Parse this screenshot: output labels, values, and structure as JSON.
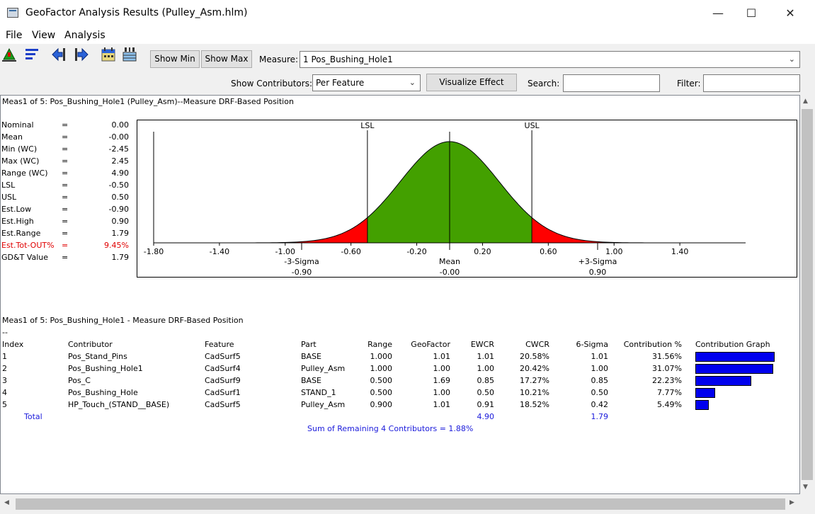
{
  "window": {
    "title": "GeoFactor Analysis Results (Pulley_Asm.hlm)",
    "minimize": "—",
    "maximize": "☐",
    "close": "✕"
  },
  "menu": [
    "File",
    "View",
    "Analysis"
  ],
  "toolbar": {
    "show_min": "Show Min",
    "show_max": "Show Max",
    "measure_label": "Measure:",
    "measure_value": "1 Pos_Bushing_Hole1",
    "contributors_label": "Show Contributors:",
    "contributors_value": "Per Feature",
    "visualize": "Visualize Effect",
    "search_label": "Search:",
    "filter_label": "Filter:",
    "icons": [
      "tree-up-icon",
      "sort-list-icon",
      "arrow-left-icon",
      "arrow-right-icon",
      "calendar-icon",
      "table-index-icon"
    ]
  },
  "header1": "Meas1 of 5: Pos_Bushing_Hole1 (Pulley_Asm)--Measure DRF-Based Position",
  "stats": [
    {
      "name": "Nominal",
      "eq": "=",
      "value": "0.00"
    },
    {
      "name": "Mean",
      "eq": "=",
      "value": "-0.00"
    },
    {
      "name": "Min (WC)",
      "eq": "=",
      "value": "-2.45"
    },
    {
      "name": "Max (WC)",
      "eq": "=",
      "value": "2.45"
    },
    {
      "name": "Range (WC)",
      "eq": "=",
      "value": "4.90"
    },
    {
      "name": "LSL",
      "eq": "=",
      "value": "-0.50"
    },
    {
      "name": "USL",
      "eq": "=",
      "value": "0.50"
    },
    {
      "name": "Est.Low",
      "eq": "=",
      "value": "-0.90"
    },
    {
      "name": "Est.High",
      "eq": "=",
      "value": "0.90"
    },
    {
      "name": "Est.Range",
      "eq": "=",
      "value": "1.79"
    },
    {
      "name": "Est.Tot-OUT%",
      "eq": "=",
      "value": "9.45%",
      "highlight": true
    },
    {
      "name": "GD&T Value",
      "eq": "=",
      "value": "1.79"
    }
  ],
  "chart_data": {
    "type": "area",
    "xlim": [
      -1.8,
      1.8
    ],
    "ticks": [
      "-1.80",
      "-1.40",
      "-1.00",
      "-0.60",
      "-0.20",
      "0.20",
      "0.60",
      "1.00",
      "1.40"
    ],
    "tick_values": [
      -1.8,
      -1.4,
      -1.0,
      -0.6,
      -0.2,
      0.2,
      0.6,
      1.0,
      1.4
    ],
    "mean": 0.0,
    "sigma": 0.3,
    "lsl": -0.5,
    "usl": 0.5,
    "lsl_label": "LSL",
    "usl_label": "USL",
    "in_spec_color": "#43a000",
    "out_spec_color": "#ff0000",
    "markers": [
      {
        "label": "-3-Sigma",
        "value_text": "-0.90",
        "x": -0.9
      },
      {
        "label": "Mean",
        "value_text": "-0.00",
        "x": 0.0
      },
      {
        "label": "+3-Sigma",
        "value_text": "0.90",
        "x": 0.9
      }
    ]
  },
  "header2": "Meas1 of 5: Pos_Bushing_Hole1 - Measure DRF-Based Position",
  "dash": "--",
  "columns": [
    "Index",
    "Contributor",
    "Feature",
    "Part",
    "Range",
    "GeoFactor",
    "EWCR",
    "CWCR",
    "6-Sigma",
    "Contribution %",
    "Contribution Graph"
  ],
  "rows": [
    {
      "index": "1",
      "contributor": "Pos_Stand_Pins",
      "feature": "CadSurf5",
      "part": "BASE",
      "range": "1.000",
      "geofactor": "1.01",
      "ewcr": "1.01",
      "cwcr": "20.58%",
      "sigma6": "1.01",
      "contribution": "31.56%",
      "pct": 31.56
    },
    {
      "index": "2",
      "contributor": "Pos_Bushing_Hole1",
      "feature": "CadSurf4",
      "part": "Pulley_Asm",
      "range": "1.000",
      "geofactor": "1.00",
      "ewcr": "1.00",
      "cwcr": "20.42%",
      "sigma6": "1.00",
      "contribution": "31.07%",
      "pct": 31.07
    },
    {
      "index": "3",
      "contributor": "Pos_C",
      "feature": "CadSurf9",
      "part": "BASE",
      "range": "0.500",
      "geofactor": "1.69",
      "ewcr": "0.85",
      "cwcr": "17.27%",
      "sigma6": "0.85",
      "contribution": "22.23%",
      "pct": 22.23
    },
    {
      "index": "4",
      "contributor": "Pos_Bushing_Hole",
      "feature": "CadSurf1",
      "part": "STAND_1",
      "range": "0.500",
      "geofactor": "1.00",
      "ewcr": "0.50",
      "cwcr": "10.21%",
      "sigma6": "0.50",
      "contribution": "7.77%",
      "pct": 7.77
    },
    {
      "index": "5",
      "contributor": "HP_Touch_(STAND__BASE)",
      "feature": "CadSurf5",
      "part": "Pulley_Asm",
      "range": "0.900",
      "geofactor": "1.01",
      "ewcr": "0.91",
      "cwcr": "18.52%",
      "sigma6": "0.42",
      "contribution": "5.49%",
      "pct": 5.49
    }
  ],
  "bar_color": "#0000ee",
  "total": {
    "label": "Total",
    "ewcr": "4.90",
    "sigma6": "1.79"
  },
  "remaining": "Sum of Remaining 4 Contributors = 1.88%",
  "scroll": {
    "up": "▲",
    "down": "▼",
    "left": "◀",
    "right": "▶"
  }
}
